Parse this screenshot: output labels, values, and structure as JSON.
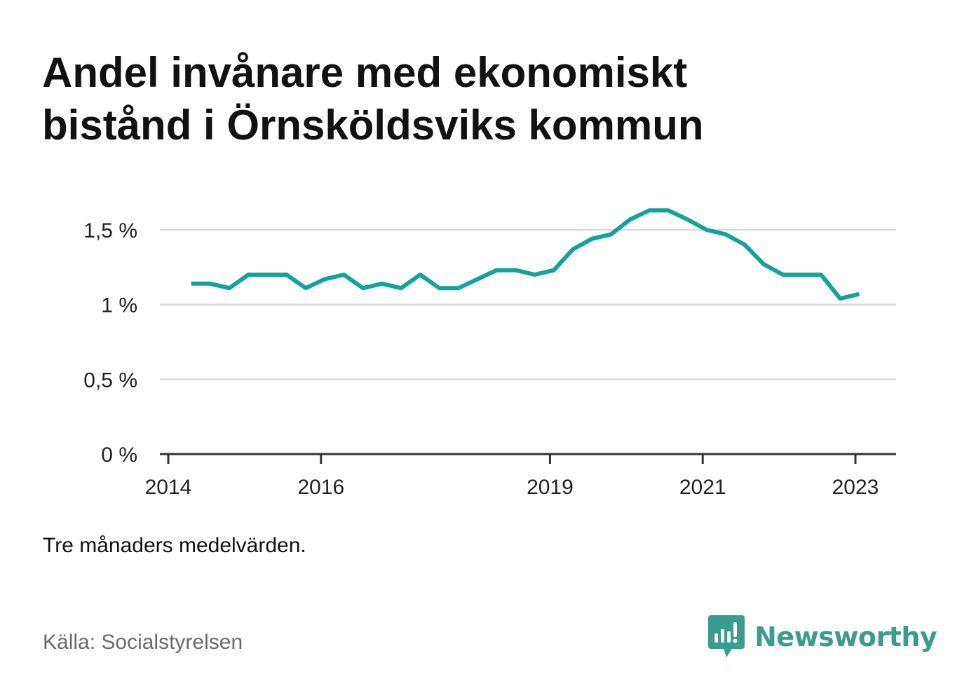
{
  "title_lines": [
    "Andel invånare med ekonomiskt",
    "bistånd i Örnsköldsviks kommun"
  ],
  "note": "Tre månaders medelvärden.",
  "source": "Källa: Socialstyrelsen",
  "brand": {
    "name": "Newsworthy",
    "icon": "newsworthy-logo-icon",
    "color": "#3a9c8c"
  },
  "colors": {
    "line": "#13a399",
    "grid": "#d9d9d9",
    "axis": "#333333"
  },
  "chart_data": {
    "type": "line",
    "title": "Andel invånare med ekonomiskt bistånd i Örnsköldsviks kommun",
    "xlabel": "",
    "ylabel": "",
    "ylim": [
      0,
      1.7
    ],
    "xlim": [
      2014,
      2024.6
    ],
    "grid": true,
    "y_ticks": [
      {
        "value": 0,
        "label": "0 %"
      },
      {
        "value": 0.5,
        "label": "0,5 %"
      },
      {
        "value": 1.0,
        "label": "1 %"
      },
      {
        "value": 1.5,
        "label": "1,5 %"
      }
    ],
    "x_ticks": [
      {
        "value": 2014,
        "label": "2014"
      },
      {
        "value": 2016,
        "label": "2016"
      },
      {
        "value": 2019,
        "label": "2019"
      },
      {
        "value": 2021,
        "label": "2021"
      },
      {
        "value": 2023,
        "label": "2023"
      }
    ],
    "series": [
      {
        "color": "#13a399",
        "x": [
          2014.3,
          2014.55,
          2014.8,
          2015.05,
          2015.3,
          2015.55,
          2015.8,
          2016.05,
          2016.3,
          2016.55,
          2016.8,
          2017.05,
          2017.3,
          2017.55,
          2017.8,
          2018.05,
          2018.3,
          2018.55,
          2018.8,
          2019.05,
          2019.3,
          2019.55,
          2019.8,
          2020.05,
          2020.3,
          2020.55,
          2020.8,
          2021.05,
          2021.3,
          2021.55,
          2021.8,
          2022.05,
          2022.3,
          2022.55,
          2022.8,
          2023.05
        ],
        "values": [
          1.14,
          1.14,
          1.11,
          1.2,
          1.2,
          1.2,
          1.11,
          1.17,
          1.2,
          1.11,
          1.14,
          1.11,
          1.2,
          1.11,
          1.11,
          1.17,
          1.23,
          1.23,
          1.2,
          1.23,
          1.37,
          1.44,
          1.47,
          1.57,
          1.63,
          1.63,
          1.57,
          1.5,
          1.47,
          1.4,
          1.27,
          1.2,
          1.2,
          1.2,
          1.04,
          1.07
        ]
      }
    ]
  }
}
